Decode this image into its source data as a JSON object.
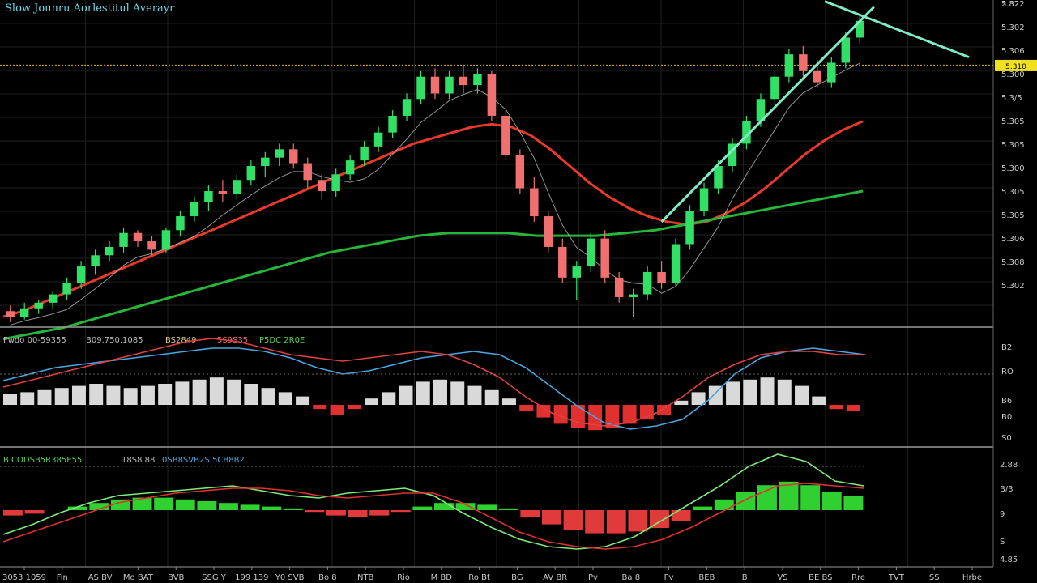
{
  "header": {
    "title": "Slow Jounru Aorlestitul Averayr",
    "top_corner": "2.82"
  },
  "colors": {
    "background": "#000000",
    "grid": "#1f1f1f",
    "separator": "#9a9a9a",
    "up_candle": "#33e066",
    "down_candle": "#f07070",
    "ma_red": "#e83a2a",
    "ma_green": "#27b53a",
    "ma_thin_white": "#cfcfcf",
    "ma_thin_yellow": "#d8c020",
    "trend_line": "#7fe9c8",
    "level_line": "#c8a020",
    "level_badge": "#f0e020",
    "macd_hist_pos": "#d9d9d9",
    "macd_hist_neg": "#e03030",
    "macd_line_blue": "#4aa6e0",
    "macd_line_red": "#e04040",
    "macd_line_white": "#e0e0e0",
    "osc_hist_pos": "#2fd02f",
    "osc_hist_neg": "#e03a3a",
    "osc_line_green": "#7dea7d",
    "osc_line_red": "#e03030",
    "axis_text": "#c8c8c8",
    "title_text": "#67d8e8"
  },
  "chart_data": [
    {
      "type": "candlestick",
      "title": "Slow Jounru Aorlestitul Averayr",
      "price_axis_labels": [
        "5.322",
        "5.302",
        "5.306",
        "5.300",
        "5.3/5",
        "5.305",
        "5.305",
        "5.300",
        "5.305",
        "5.305",
        "5.306",
        "5.308",
        "5.302"
      ],
      "level_label": "5.310",
      "candles": [
        {
          "o": 4,
          "h": 6,
          "l": 0,
          "c": 2
        },
        {
          "o": 2,
          "h": 7,
          "l": 1,
          "c": 5
        },
        {
          "o": 5,
          "h": 8,
          "l": 3,
          "c": 7
        },
        {
          "o": 7,
          "h": 11,
          "l": 5,
          "c": 10
        },
        {
          "o": 10,
          "h": 16,
          "l": 8,
          "c": 14
        },
        {
          "o": 14,
          "h": 22,
          "l": 12,
          "c": 20
        },
        {
          "o": 20,
          "h": 26,
          "l": 17,
          "c": 24
        },
        {
          "o": 24,
          "h": 29,
          "l": 22,
          "c": 27
        },
        {
          "o": 27,
          "h": 34,
          "l": 25,
          "c": 32
        },
        {
          "o": 32,
          "h": 33,
          "l": 27,
          "c": 29
        },
        {
          "o": 29,
          "h": 31,
          "l": 24,
          "c": 26
        },
        {
          "o": 26,
          "h": 34,
          "l": 25,
          "c": 33
        },
        {
          "o": 33,
          "h": 40,
          "l": 31,
          "c": 38
        },
        {
          "o": 38,
          "h": 45,
          "l": 36,
          "c": 43
        },
        {
          "o": 43,
          "h": 49,
          "l": 40,
          "c": 47
        },
        {
          "o": 47,
          "h": 51,
          "l": 43,
          "c": 46
        },
        {
          "o": 46,
          "h": 53,
          "l": 44,
          "c": 51
        },
        {
          "o": 51,
          "h": 58,
          "l": 49,
          "c": 56
        },
        {
          "o": 56,
          "h": 61,
          "l": 52,
          "c": 59
        },
        {
          "o": 59,
          "h": 64,
          "l": 56,
          "c": 62
        },
        {
          "o": 62,
          "h": 64,
          "l": 55,
          "c": 57
        },
        {
          "o": 57,
          "h": 59,
          "l": 48,
          "c": 51
        },
        {
          "o": 51,
          "h": 53,
          "l": 44,
          "c": 47
        },
        {
          "o": 47,
          "h": 55,
          "l": 45,
          "c": 53
        },
        {
          "o": 53,
          "h": 60,
          "l": 51,
          "c": 58
        },
        {
          "o": 58,
          "h": 65,
          "l": 56,
          "c": 63
        },
        {
          "o": 63,
          "h": 70,
          "l": 61,
          "c": 68
        },
        {
          "o": 68,
          "h": 76,
          "l": 66,
          "c": 74
        },
        {
          "o": 74,
          "h": 82,
          "l": 72,
          "c": 80
        },
        {
          "o": 80,
          "h": 90,
          "l": 78,
          "c": 88
        },
        {
          "o": 88,
          "h": 91,
          "l": 80,
          "c": 82
        },
        {
          "o": 82,
          "h": 90,
          "l": 80,
          "c": 88
        },
        {
          "o": 88,
          "h": 92,
          "l": 82,
          "c": 85
        },
        {
          "o": 85,
          "h": 91,
          "l": 82,
          "c": 89
        },
        {
          "o": 89,
          "h": 90,
          "l": 72,
          "c": 74
        },
        {
          "o": 74,
          "h": 76,
          "l": 58,
          "c": 60
        },
        {
          "o": 60,
          "h": 62,
          "l": 46,
          "c": 48
        },
        {
          "o": 48,
          "h": 52,
          "l": 36,
          "c": 38
        },
        {
          "o": 38,
          "h": 40,
          "l": 25,
          "c": 27
        },
        {
          "o": 27,
          "h": 30,
          "l": 14,
          "c": 16
        },
        {
          "o": 16,
          "h": 22,
          "l": 8,
          "c": 20
        },
        {
          "o": 20,
          "h": 32,
          "l": 18,
          "c": 30
        },
        {
          "o": 30,
          "h": 33,
          "l": 14,
          "c": 16
        },
        {
          "o": 16,
          "h": 18,
          "l": 7,
          "c": 9
        },
        {
          "o": 9,
          "h": 12,
          "l": 2,
          "c": 10
        },
        {
          "o": 10,
          "h": 20,
          "l": 8,
          "c": 18
        },
        {
          "o": 18,
          "h": 22,
          "l": 12,
          "c": 14
        },
        {
          "o": 14,
          "h": 30,
          "l": 13,
          "c": 28
        },
        {
          "o": 28,
          "h": 42,
          "l": 26,
          "c": 40
        },
        {
          "o": 40,
          "h": 50,
          "l": 38,
          "c": 48
        },
        {
          "o": 48,
          "h": 58,
          "l": 46,
          "c": 56
        },
        {
          "o": 56,
          "h": 66,
          "l": 54,
          "c": 64
        },
        {
          "o": 64,
          "h": 74,
          "l": 62,
          "c": 72
        },
        {
          "o": 72,
          "h": 82,
          "l": 70,
          "c": 80
        },
        {
          "o": 80,
          "h": 90,
          "l": 78,
          "c": 88
        },
        {
          "o": 88,
          "h": 98,
          "l": 86,
          "c": 96
        },
        {
          "o": 96,
          "h": 99,
          "l": 88,
          "c": 90
        },
        {
          "o": 90,
          "h": 94,
          "l": 84,
          "c": 86
        },
        {
          "o": 86,
          "h": 95,
          "l": 84,
          "c": 93
        },
        {
          "o": 93,
          "h": 104,
          "l": 91,
          "c": 102
        },
        {
          "o": 102,
          "h": 110,
          "l": 100,
          "c": 108
        }
      ],
      "moving_averages": [
        {
          "color": "ma_red",
          "values": [
            2,
            4,
            7,
            10,
            13,
            16,
            19,
            22,
            25,
            28,
            31,
            34,
            37,
            40,
            43,
            46,
            49,
            52,
            55,
            58,
            61,
            64,
            66,
            68,
            70,
            71,
            70,
            67,
            62,
            56,
            50,
            45,
            41,
            38,
            36,
            35,
            36,
            39,
            43,
            48,
            54,
            60,
            65,
            69,
            72
          ]
        },
        {
          "color": "ma_green",
          "values": [
            -6,
            -4,
            -2,
            1,
            4,
            7,
            10,
            13,
            16,
            19,
            22,
            25,
            27,
            29,
            31,
            32,
            32,
            32,
            31,
            31,
            31,
            32,
            33,
            35,
            37,
            39,
            41,
            43,
            45,
            47
          ]
        }
      ],
      "trend_lines": [
        {
          "x": [
            46,
            61
          ],
          "y": [
            36,
            113
          ]
        },
        {
          "x": [
            61,
            72
          ],
          "y": [
            115,
            95
          ]
        }
      ],
      "horizontal_level": 92
    },
    {
      "type": "macd",
      "legend_text": [
        "Fwdo 00-59355",
        "B09.750.1085",
        "BS2849",
        "5S9S35",
        "P5DC 2R0E"
      ],
      "axis_labels": [
        "B2",
        "RO",
        "B6",
        "B0",
        "S0"
      ],
      "histogram": [
        0.5,
        0.6,
        0.7,
        0.8,
        0.9,
        1.0,
        0.9,
        0.8,
        0.9,
        1.0,
        1.1,
        1.2,
        1.3,
        1.2,
        1.0,
        0.8,
        0.6,
        0.4,
        -0.2,
        -0.5,
        -0.2,
        0.3,
        0.6,
        0.9,
        1.1,
        1.2,
        1.1,
        0.9,
        0.7,
        0.3,
        -0.3,
        -0.6,
        -0.9,
        -1.1,
        -1.2,
        -1.1,
        -0.9,
        -0.7,
        -0.5,
        0.2,
        0.6,
        0.9,
        1.1,
        1.2,
        1.3,
        1.2,
        0.9,
        0.4,
        -0.2,
        -0.3
      ],
      "lines": [
        {
          "color": "macd_line_blue",
          "values": [
            0.2,
            0.4,
            0.6,
            0.7,
            0.8,
            0.9,
            1.0,
            1.1,
            1.2,
            1.2,
            1.1,
            0.9,
            0.6,
            0.4,
            0.5,
            0.7,
            0.9,
            1.0,
            1.1,
            1.0,
            0.6,
            0.0,
            -0.6,
            -1.1,
            -1.3,
            -1.2,
            -1.0,
            -0.4,
            0.4,
            0.9,
            1.1,
            1.2,
            1.1,
            1.0
          ]
        },
        {
          "color": "macd_line_red",
          "values": [
            0.0,
            0.2,
            0.4,
            0.6,
            0.8,
            1.0,
            1.2,
            1.4,
            1.5,
            1.4,
            1.2,
            1.0,
            0.9,
            0.8,
            0.9,
            1.0,
            1.1,
            1.0,
            0.7,
            0.3,
            -0.3,
            -0.8,
            -1.1,
            -1.2,
            -1.1,
            -0.8,
            -0.3,
            0.3,
            0.7,
            1.0,
            1.1,
            1.1,
            1.0,
            1.0
          ]
        }
      ]
    },
    {
      "type": "oscillator",
      "legend_text": [
        "B CODSB5R385E55",
        "18S8.88",
        "0SB8SVB2S",
        "5CB8B2"
      ],
      "axis_labels": [
        "2.88",
        "B/3",
        "9",
        "S",
        "4.85"
      ],
      "histogram": [
        -0.3,
        -0.2,
        0.0,
        0.2,
        0.4,
        0.6,
        0.7,
        0.7,
        0.6,
        0.5,
        0.4,
        0.3,
        0.2,
        0.1,
        -0.1,
        -0.3,
        -0.4,
        -0.3,
        -0.1,
        0.2,
        0.4,
        0.4,
        0.3,
        0.1,
        -0.4,
        -0.8,
        -1.1,
        -1.3,
        -1.3,
        -1.2,
        -1.0,
        -0.6,
        0.2,
        0.6,
        1.0,
        1.4,
        1.6,
        1.4,
        1.0,
        0.8
      ],
      "lines": [
        {
          "color": "osc_line_green",
          "values": [
            -1.0,
            -0.6,
            -0.1,
            0.3,
            0.6,
            0.7,
            0.8,
            0.9,
            1.0,
            0.8,
            0.6,
            0.5,
            0.7,
            0.8,
            0.9,
            0.6,
            -0.1,
            -0.7,
            -1.2,
            -1.5,
            -1.6,
            -1.5,
            -1.1,
            -0.4,
            0.3,
            1.0,
            1.8,
            2.3,
            2.0,
            1.2,
            1.0
          ]
        },
        {
          "color": "osc_line_red",
          "values": [
            -1.3,
            -0.9,
            -0.5,
            -0.1,
            0.3,
            0.5,
            0.7,
            0.8,
            0.9,
            0.9,
            0.8,
            0.6,
            0.5,
            0.6,
            0.7,
            0.7,
            0.3,
            -0.3,
            -0.9,
            -1.3,
            -1.5,
            -1.6,
            -1.5,
            -1.2,
            -0.7,
            -0.1,
            0.5,
            1.0,
            1.1,
            1.0,
            0.9
          ]
        }
      ]
    }
  ],
  "x_axis_labels": [
    "3053 1059",
    "Fin",
    "AS BV",
    "Mo BAT",
    "BVB",
    "SSG Y",
    "199 139",
    "Y0 SVB",
    "Bo 8",
    "NTB",
    "Rio",
    "M BD",
    "Ro Bt",
    "BG",
    "AV BR",
    "Pv",
    "Ba 8",
    "Pv",
    "BEB",
    "B",
    "VS",
    "BE BS",
    "Rre",
    "TVT",
    "SS",
    "Hrbe"
  ]
}
